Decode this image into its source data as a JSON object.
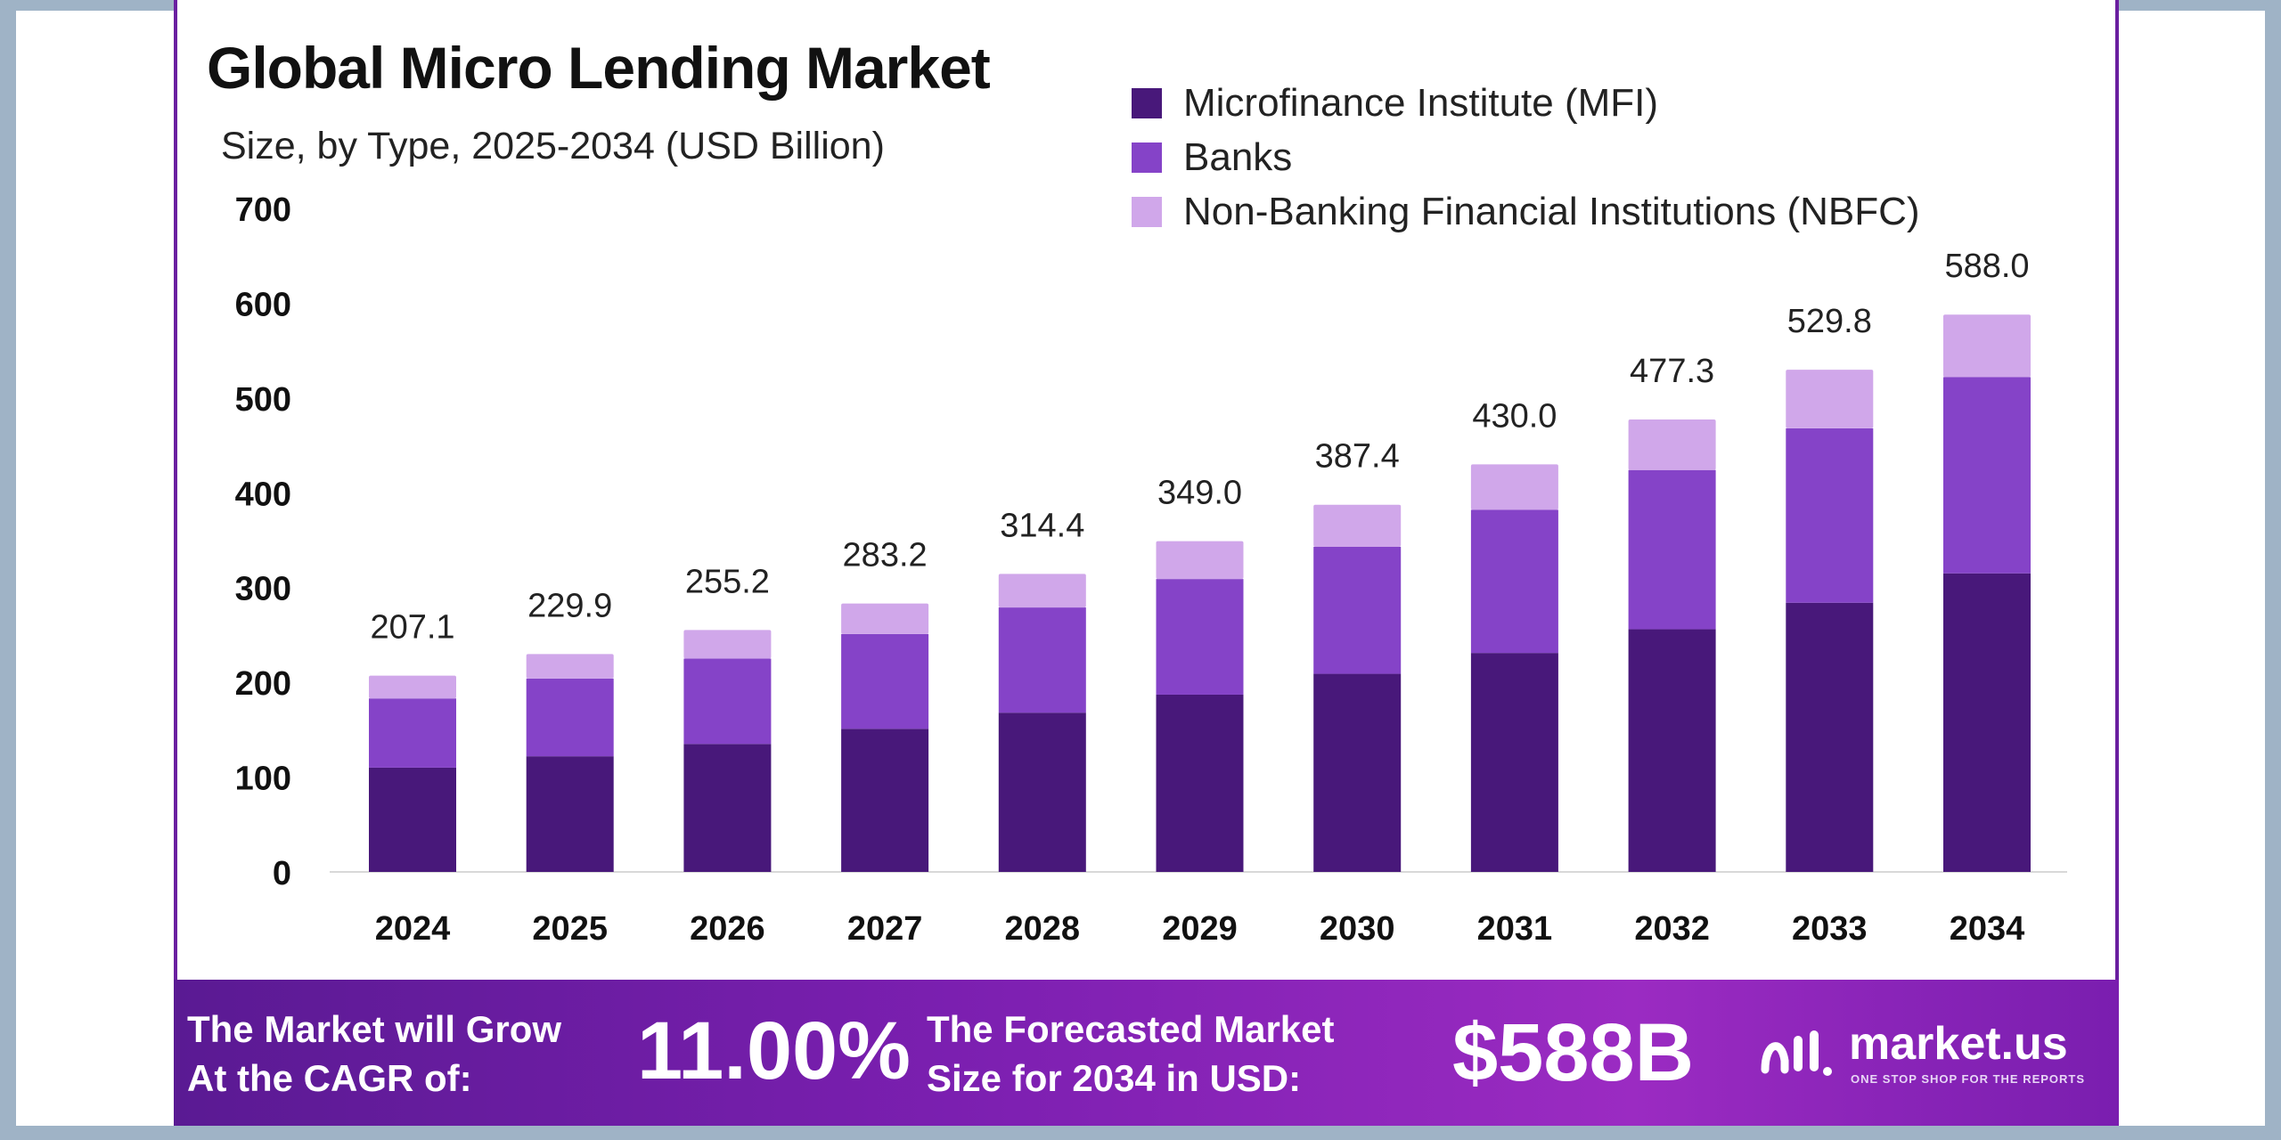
{
  "title": "Global Micro Lending Market",
  "subtitle": "Size, by Type, 2025-2034 (USD Billion)",
  "colors": {
    "mfi": "#48187a",
    "banks": "#8543c8",
    "nbfc": "#d0a7ea",
    "brand": "#7b1fb0"
  },
  "chart_data": {
    "type": "bar",
    "stacked": true,
    "categories": [
      "2024",
      "2025",
      "2026",
      "2027",
      "2028",
      "2029",
      "2030",
      "2031",
      "2032",
      "2033",
      "2034"
    ],
    "series": [
      {
        "name": "Microfinance Institute (MFI)",
        "values": [
          110,
          122,
          135,
          151,
          168,
          187,
          209,
          231,
          256,
          284,
          315
        ]
      },
      {
        "name": "Banks",
        "values": [
          73,
          82,
          90,
          100,
          111,
          122,
          134,
          151,
          168,
          184,
          207
        ]
      },
      {
        "name": "Non-Banking Financial Institutions (NBFC)",
        "values": [
          24.1,
          25.9,
          30.2,
          32.2,
          35.4,
          40.0,
          44.4,
          48.0,
          53.3,
          61.8,
          66.0
        ]
      }
    ],
    "totals": [
      "207.1",
      "229.9",
      "255.2",
      "283.2",
      "314.4",
      "349.0",
      "387.4",
      "430.0",
      "477.3",
      "529.8",
      "588.0"
    ],
    "yticks": [
      "0",
      "100",
      "200",
      "300",
      "400",
      "500",
      "600",
      "700"
    ],
    "ylim": [
      0,
      700
    ],
    "legend_position": "top-right",
    "grid": false
  },
  "banner": {
    "cagr_label_line1": "The Market will Grow",
    "cagr_label_line2": "At the CAGR of:",
    "cagr_value": "11.00%",
    "forecast_label_line1": "The Forecasted Market",
    "forecast_label_line2": "Size for 2034 in USD:",
    "forecast_value": "$588B",
    "logo_name": "market.us",
    "logo_tagline": "ONE STOP SHOP FOR THE REPORTS"
  }
}
